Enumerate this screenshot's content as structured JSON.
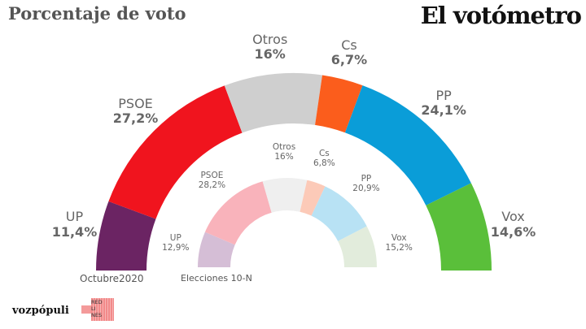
{
  "title": "Porcentaje de voto",
  "brand": "El votómetro",
  "footer": {
    "left_logo": "vozpópuli",
    "right_logo": "RED LI NES"
  },
  "chart_data": [
    {
      "type": "pie",
      "subtype": "semicircle-donut",
      "caption": "Octubre2020",
      "categories": [
        "UP",
        "PSOE",
        "Otros",
        "Cs",
        "PP",
        "Vox"
      ],
      "values": [
        11.4,
        27.2,
        16,
        6.7,
        24.1,
        14.6
      ],
      "labels": [
        "11,4%",
        "27,2%",
        "16%",
        "6,7%",
        "24,1%",
        "14,6%"
      ],
      "colors": [
        "#6b2463",
        "#f0141e",
        "#cfcfcf",
        "#fb5d1c",
        "#0a9dd8",
        "#5abf3a"
      ]
    },
    {
      "type": "pie",
      "subtype": "semicircle-donut",
      "caption": "Elecciones 10-N",
      "categories": [
        "UP",
        "PSOE",
        "Otros",
        "Cs",
        "PP",
        "Vox"
      ],
      "values": [
        12.9,
        28.2,
        16,
        6.8,
        20.9,
        15.2
      ],
      "labels": [
        "12,9%",
        "28,2%",
        "16%",
        "6,8%",
        "20,9%",
        "15,2%"
      ],
      "colors": [
        "#d5bed6",
        "#f9b3bb",
        "#efefef",
        "#fccab8",
        "#b8e2f4",
        "#e2ecdc"
      ]
    }
  ]
}
